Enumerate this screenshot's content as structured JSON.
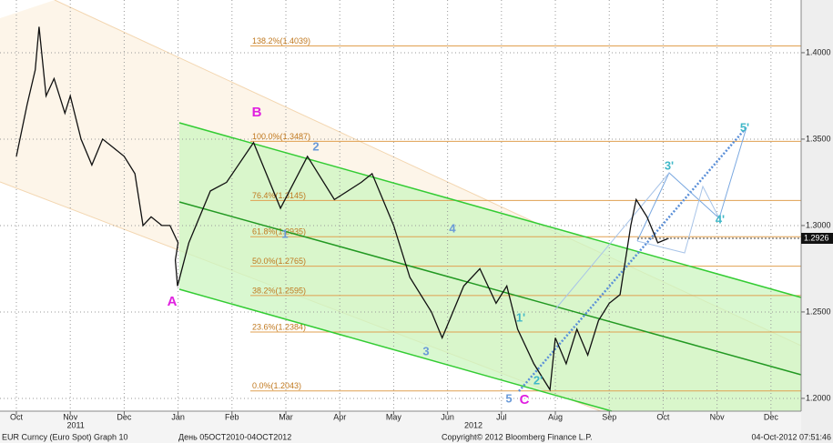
{
  "chart_data": {
    "type": "line",
    "series": [
      {
        "name": "EUR Curncy",
        "color": "#111111",
        "values": [
          1.34,
          1.37,
          1.39,
          1.415,
          1.375,
          1.385,
          1.365,
          1.375,
          1.35,
          1.335,
          1.35,
          1.345,
          1.34,
          1.33,
          1.3,
          1.305,
          1.3,
          1.3,
          1.29,
          1.28,
          1.265,
          1.29,
          1.32,
          1.325,
          1.348,
          1.31,
          1.34,
          1.315,
          1.325,
          1.33,
          1.3,
          1.27,
          1.25,
          1.235,
          1.265,
          1.275,
          1.255,
          1.265,
          1.24,
          1.22,
          1.205,
          1.235,
          1.22,
          1.24,
          1.225,
          1.245,
          1.255,
          1.26,
          1.3,
          1.315,
          1.305,
          1.29,
          1.2926
        ]
      }
    ],
    "x": [
      0,
      0.2,
      0.35,
      0.42,
      0.55,
      0.7,
      0.9,
      1.0,
      1.2,
      1.4,
      1.6,
      1.8,
      2.0,
      2.2,
      2.35,
      2.5,
      2.7,
      2.85,
      3.0,
      2.95,
      2.99,
      3.2,
      3.6,
      3.9,
      4.4,
      4.9,
      5.4,
      5.9,
      6.4,
      6.6,
      7.0,
      7.3,
      7.7,
      7.9,
      8.3,
      8.6,
      8.9,
      9.1,
      9.3,
      9.6,
      9.9,
      10.0,
      10.2,
      10.4,
      10.6,
      10.8,
      11.0,
      11.2,
      11.4,
      11.5,
      11.7,
      11.9,
      12.1
    ],
    "xlim": [
      -0.304,
      14.56
    ],
    "xticks": [
      {
        "value": 0,
        "label": "Oct"
      },
      {
        "value": 1,
        "label": "Nov"
      },
      {
        "value": 2,
        "label": "Dec"
      },
      {
        "value": 3,
        "label": "Jan"
      },
      {
        "value": 4,
        "label": "Feb"
      },
      {
        "value": 5,
        "label": "Mar"
      },
      {
        "value": 6,
        "label": "Apr"
      },
      {
        "value": 7,
        "label": "May"
      },
      {
        "value": 8,
        "label": "Jun"
      },
      {
        "value": 9,
        "label": "Jul"
      },
      {
        "value": 10,
        "label": "Aug"
      },
      {
        "value": 11,
        "label": "Sep"
      },
      {
        "value": 12,
        "label": "Oct"
      },
      {
        "value": 13,
        "label": "Nov"
      },
      {
        "value": 14,
        "label": "Dec"
      }
    ],
    "year_labels": [
      {
        "value": 1.1,
        "label": "2011"
      },
      {
        "value": 8.48,
        "label": "2012"
      }
    ],
    "ylim": [
      1.1926,
      1.4305
    ],
    "yticks": [
      {
        "value": 1.2,
        "label": "1.2000"
      },
      {
        "value": 1.25,
        "label": "1.2500"
      },
      {
        "value": 1.3,
        "label": "1.3000"
      },
      {
        "value": 1.35,
        "label": "1.3500"
      },
      {
        "value": 1.4,
        "label": "1.4000"
      }
    ],
    "grid": true,
    "last_price": 1.2926,
    "fib_levels": [
      {
        "value": 1.4039,
        "label": "138.2%(1.4039)"
      },
      {
        "value": 1.3487,
        "label": "100.0%(1.3487)"
      },
      {
        "value": 1.3145,
        "label": "76.4%(1.3145)"
      },
      {
        "value": 1.2935,
        "label": "61.8%(1.2935)"
      },
      {
        "value": 1.2765,
        "label": "50.0%(1.2765)"
      },
      {
        "value": 1.2595,
        "label": "38.2%(1.2595)"
      },
      {
        "value": 1.2384,
        "label": "23.6%(1.2384)"
      },
      {
        "value": 1.2043,
        "label": "0.0%(1.2043)"
      }
    ],
    "wave_labels": [
      "A",
      "B",
      "C",
      "1",
      "2",
      "3",
      "4",
      "5",
      "1'",
      "2'",
      "3'",
      "4'",
      "5'"
    ],
    "footer": [
      "EUR Curncy (Euro Spot) Graph 10",
      "День 05OCT2010-04OCT2012",
      "Copyright© 2012 Bloomberg Finance L.P.",
      "04-Oct-2012 07:51:46"
    ]
  }
}
